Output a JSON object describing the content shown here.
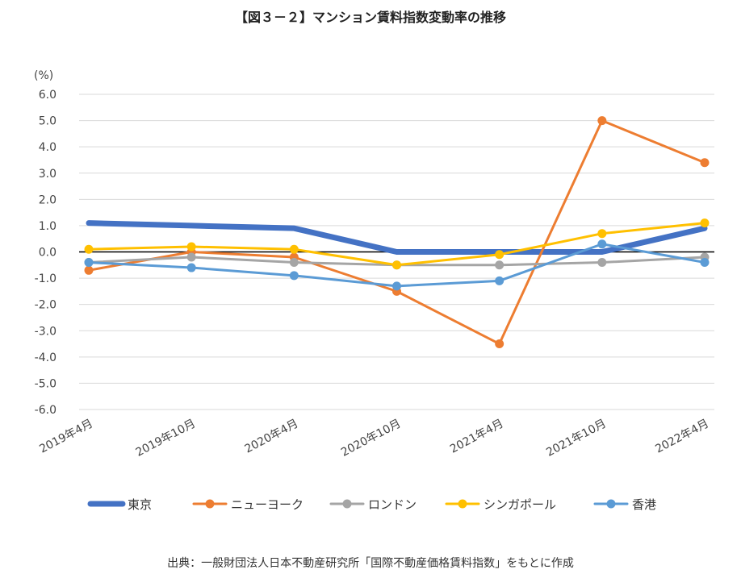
{
  "chart_data": {
    "type": "line",
    "title": "【図３－２】マンション賃料指数変動率の推移",
    "ylabel": "(%)",
    "xlabel": "",
    "ylim": [
      -6.0,
      6.0
    ],
    "yticks": [
      "6.0",
      "5.0",
      "4.0",
      "3.0",
      "2.0",
      "1.0",
      "0.0",
      "-1.0",
      "-2.0",
      "-3.0",
      "-4.0",
      "-5.0",
      "-6.0"
    ],
    "categories": [
      "2019年4月",
      "2019年10月",
      "2020年4月",
      "2020年10月",
      "2021年4月",
      "2021年10月",
      "2022年4月"
    ],
    "series": [
      {
        "name": "東京",
        "color": "#4472c4",
        "bold": true,
        "markers": false,
        "values": [
          1.1,
          1.0,
          0.9,
          0.0,
          0.0,
          0.0,
          0.9
        ]
      },
      {
        "name": "ニューヨーク",
        "color": "#ed7d31",
        "bold": false,
        "markers": true,
        "values": [
          -0.7,
          0.0,
          -0.2,
          -1.5,
          -3.5,
          5.0,
          3.4
        ]
      },
      {
        "name": "ロンドン",
        "color": "#a5a5a5",
        "bold": false,
        "markers": true,
        "values": [
          -0.4,
          -0.2,
          -0.4,
          -0.5,
          -0.5,
          -0.4,
          -0.2
        ]
      },
      {
        "name": "シンガポール",
        "color": "#ffc000",
        "bold": false,
        "markers": true,
        "values": [
          0.1,
          0.2,
          0.1,
          -0.5,
          -0.1,
          0.7,
          1.1
        ]
      },
      {
        "name": "香港",
        "color": "#5b9bd5",
        "bold": false,
        "markers": true,
        "values": [
          -0.4,
          -0.6,
          -0.9,
          -1.3,
          -1.1,
          0.3,
          -0.4
        ]
      }
    ],
    "grid": true,
    "legend": "bottom"
  },
  "source_note": "出典：一般財団法人日本不動産研究所「国際不動産価格賃料指数」をもとに作成"
}
